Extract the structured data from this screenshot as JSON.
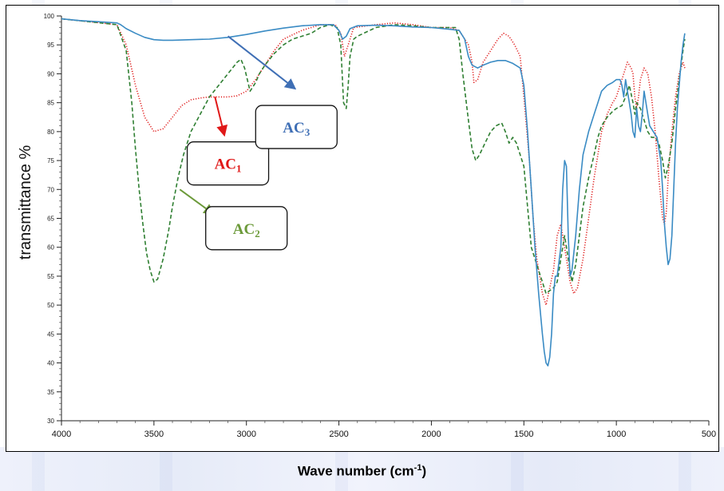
{
  "chart_data": {
    "type": "line",
    "title": "",
    "xlabel": "Wave number (cm",
    "xlabel_sup": "-1",
    "xlabel_close": ")",
    "ylabel": "transmittance %",
    "xlim": [
      4000,
      500
    ],
    "ylim": [
      30,
      100
    ],
    "x_ticks": [
      "4000",
      "3500",
      "3000",
      "2500",
      "2000",
      "1500",
      "1000",
      "500"
    ],
    "y_ticks": [
      "30",
      "35",
      "40",
      "45",
      "50",
      "55",
      "60",
      "65",
      "70",
      "75",
      "80",
      "85",
      "90",
      "95",
      "100"
    ],
    "grid": false,
    "series": [
      {
        "name": "AC1",
        "color": "#e02020",
        "dash": "dotted",
        "points": [
          [
            4000,
            99.5
          ],
          [
            3850,
            99
          ],
          [
            3700,
            98.5
          ],
          [
            3650,
            95
          ],
          [
            3600,
            88
          ],
          [
            3550,
            82.5
          ],
          [
            3500,
            80
          ],
          [
            3450,
            80.5
          ],
          [
            3400,
            82.5
          ],
          [
            3350,
            84.5
          ],
          [
            3300,
            85.5
          ],
          [
            3250,
            85.8
          ],
          [
            3200,
            86
          ],
          [
            3150,
            86
          ],
          [
            3100,
            86
          ],
          [
            3050,
            86.2
          ],
          [
            3000,
            87
          ],
          [
            2950,
            89
          ],
          [
            2900,
            91.5
          ],
          [
            2850,
            94
          ],
          [
            2800,
            96
          ],
          [
            2700,
            97.5
          ],
          [
            2600,
            98.5
          ],
          [
            2520,
            98.5
          ],
          [
            2490,
            97
          ],
          [
            2470,
            93
          ],
          [
            2450,
            95
          ],
          [
            2420,
            98
          ],
          [
            2300,
            98.5
          ],
          [
            2200,
            98.8
          ],
          [
            2100,
            98.5
          ],
          [
            2000,
            98
          ],
          [
            1900,
            98
          ],
          [
            1850,
            97.5
          ],
          [
            1800,
            95
          ],
          [
            1780,
            92
          ],
          [
            1770,
            88.5
          ],
          [
            1750,
            89
          ],
          [
            1720,
            92
          ],
          [
            1700,
            93
          ],
          [
            1680,
            94
          ],
          [
            1640,
            96
          ],
          [
            1610,
            97
          ],
          [
            1580,
            96.5
          ],
          [
            1550,
            95
          ],
          [
            1520,
            93
          ],
          [
            1500,
            86
          ],
          [
            1470,
            75
          ],
          [
            1450,
            65
          ],
          [
            1430,
            58
          ],
          [
            1400,
            52
          ],
          [
            1380,
            50
          ],
          [
            1360,
            53
          ],
          [
            1340,
            56
          ],
          [
            1320,
            62
          ],
          [
            1300,
            64
          ],
          [
            1280,
            60
          ],
          [
            1250,
            54
          ],
          [
            1230,
            52
          ],
          [
            1210,
            53
          ],
          [
            1180,
            58
          ],
          [
            1150,
            65
          ],
          [
            1120,
            72
          ],
          [
            1100,
            76
          ],
          [
            1080,
            80
          ],
          [
            1050,
            83
          ],
          [
            1020,
            85
          ],
          [
            1000,
            86
          ],
          [
            980,
            88
          ],
          [
            960,
            90
          ],
          [
            940,
            92
          ],
          [
            920,
            91
          ],
          [
            910,
            90
          ],
          [
            900,
            86
          ],
          [
            890,
            84
          ],
          [
            880,
            86
          ],
          [
            870,
            89
          ],
          [
            860,
            90
          ],
          [
            850,
            91
          ],
          [
            830,
            90
          ],
          [
            810,
            86
          ],
          [
            790,
            80
          ],
          [
            770,
            72
          ],
          [
            750,
            65
          ],
          [
            740,
            64
          ],
          [
            730,
            66
          ],
          [
            720,
            72
          ],
          [
            700,
            80
          ],
          [
            680,
            86
          ],
          [
            660,
            90
          ],
          [
            640,
            92
          ],
          [
            630,
            91
          ]
        ]
      },
      {
        "name": "AC2",
        "color": "#2f7f32",
        "dash": "dashed",
        "points": [
          [
            4000,
            99.5
          ],
          [
            3850,
            99
          ],
          [
            3700,
            98.5
          ],
          [
            3650,
            94
          ],
          [
            3620,
            85
          ],
          [
            3600,
            77
          ],
          [
            3580,
            70
          ],
          [
            3560,
            64
          ],
          [
            3540,
            59
          ],
          [
            3520,
            56
          ],
          [
            3500,
            54
          ],
          [
            3480,
            54.5
          ],
          [
            3450,
            58
          ],
          [
            3420,
            63
          ],
          [
            3400,
            67
          ],
          [
            3370,
            72
          ],
          [
            3340,
            76
          ],
          [
            3300,
            80
          ],
          [
            3250,
            83
          ],
          [
            3200,
            86
          ],
          [
            3150,
            88
          ],
          [
            3100,
            90
          ],
          [
            3050,
            92
          ],
          [
            3030,
            92.5
          ],
          [
            3010,
            91
          ],
          [
            2980,
            87
          ],
          [
            2950,
            88.5
          ],
          [
            2930,
            90
          ],
          [
            2900,
            91.5
          ],
          [
            2850,
            93.5
          ],
          [
            2800,
            95
          ],
          [
            2750,
            96
          ],
          [
            2700,
            96.5
          ],
          [
            2650,
            97
          ],
          [
            2600,
            98
          ],
          [
            2550,
            98.5
          ],
          [
            2510,
            98
          ],
          [
            2490,
            95
          ],
          [
            2475,
            85
          ],
          [
            2460,
            84
          ],
          [
            2450,
            88
          ],
          [
            2440,
            93
          ],
          [
            2420,
            96
          ],
          [
            2400,
            96.5
          ],
          [
            2300,
            98
          ],
          [
            2200,
            98.5
          ],
          [
            2100,
            98.3
          ],
          [
            2000,
            98
          ],
          [
            1950,
            98
          ],
          [
            1900,
            98
          ],
          [
            1870,
            98
          ],
          [
            1850,
            96
          ],
          [
            1830,
            90
          ],
          [
            1800,
            82
          ],
          [
            1780,
            77
          ],
          [
            1760,
            75
          ],
          [
            1740,
            76
          ],
          [
            1710,
            78
          ],
          [
            1680,
            80
          ],
          [
            1650,
            81
          ],
          [
            1620,
            81.5
          ],
          [
            1600,
            80
          ],
          [
            1580,
            78
          ],
          [
            1560,
            79
          ],
          [
            1540,
            78
          ],
          [
            1500,
            74
          ],
          [
            1480,
            67
          ],
          [
            1460,
            60
          ],
          [
            1440,
            58
          ],
          [
            1420,
            56
          ],
          [
            1400,
            54
          ],
          [
            1380,
            52
          ],
          [
            1360,
            52.5
          ],
          [
            1340,
            53
          ],
          [
            1320,
            54
          ],
          [
            1300,
            58
          ],
          [
            1280,
            62
          ],
          [
            1260,
            58
          ],
          [
            1240,
            54
          ],
          [
            1220,
            57
          ],
          [
            1200,
            62
          ],
          [
            1180,
            67
          ],
          [
            1150,
            72
          ],
          [
            1120,
            76
          ],
          [
            1100,
            79
          ],
          [
            1080,
            81
          ],
          [
            1050,
            82.5
          ],
          [
            1020,
            83.5
          ],
          [
            1000,
            84
          ],
          [
            970,
            84.5
          ],
          [
            950,
            86
          ],
          [
            930,
            88
          ],
          [
            910,
            85
          ],
          [
            900,
            83
          ],
          [
            890,
            85
          ],
          [
            870,
            84
          ],
          [
            850,
            82
          ],
          [
            830,
            80
          ],
          [
            810,
            79
          ],
          [
            790,
            79
          ],
          [
            770,
            78
          ],
          [
            750,
            75
          ],
          [
            735,
            72
          ],
          [
            720,
            74
          ],
          [
            700,
            78
          ],
          [
            680,
            84
          ],
          [
            660,
            89
          ],
          [
            640,
            94
          ],
          [
            630,
            96
          ]
        ]
      },
      {
        "name": "AC3",
        "color": "#3a8bc4",
        "dash": "solid",
        "points": [
          [
            4000,
            99.5
          ],
          [
            3900,
            99.2
          ],
          [
            3800,
            99
          ],
          [
            3700,
            98.8
          ],
          [
            3680,
            98.5
          ],
          [
            3650,
            97.8
          ],
          [
            3600,
            97
          ],
          [
            3550,
            96.3
          ],
          [
            3500,
            95.9
          ],
          [
            3450,
            95.8
          ],
          [
            3400,
            95.8
          ],
          [
            3300,
            95.9
          ],
          [
            3200,
            96
          ],
          [
            3100,
            96.3
          ],
          [
            3000,
            96.8
          ],
          [
            2900,
            97.4
          ],
          [
            2800,
            97.9
          ],
          [
            2700,
            98.3
          ],
          [
            2600,
            98.5
          ],
          [
            2530,
            98.5
          ],
          [
            2500,
            97.5
          ],
          [
            2480,
            96
          ],
          [
            2460,
            96.5
          ],
          [
            2440,
            97.8
          ],
          [
            2400,
            98.3
          ],
          [
            2300,
            98.4
          ],
          [
            2200,
            98.3
          ],
          [
            2100,
            98.1
          ],
          [
            2000,
            98
          ],
          [
            1900,
            97.7
          ],
          [
            1850,
            97.5
          ],
          [
            1820,
            96
          ],
          [
            1800,
            93
          ],
          [
            1780,
            91.5
          ],
          [
            1750,
            91
          ],
          [
            1720,
            91.5
          ],
          [
            1680,
            92
          ],
          [
            1640,
            92.3
          ],
          [
            1600,
            92.3
          ],
          [
            1560,
            91.8
          ],
          [
            1520,
            91
          ],
          [
            1500,
            88
          ],
          [
            1480,
            80
          ],
          [
            1460,
            70
          ],
          [
            1440,
            60
          ],
          [
            1420,
            52
          ],
          [
            1400,
            45
          ],
          [
            1390,
            42
          ],
          [
            1380,
            40
          ],
          [
            1370,
            39.5
          ],
          [
            1360,
            41
          ],
          [
            1350,
            45
          ],
          [
            1340,
            52
          ],
          [
            1330,
            55
          ],
          [
            1320,
            55
          ],
          [
            1300,
            60
          ],
          [
            1290,
            70
          ],
          [
            1280,
            75
          ],
          [
            1270,
            74
          ],
          [
            1260,
            62
          ],
          [
            1250,
            55
          ],
          [
            1240,
            56
          ],
          [
            1220,
            62
          ],
          [
            1200,
            70
          ],
          [
            1180,
            76
          ],
          [
            1150,
            80
          ],
          [
            1120,
            83
          ],
          [
            1100,
            85
          ],
          [
            1080,
            87
          ],
          [
            1050,
            88
          ],
          [
            1020,
            88.5
          ],
          [
            1000,
            89
          ],
          [
            980,
            89
          ],
          [
            970,
            88
          ],
          [
            960,
            86
          ],
          [
            950,
            89
          ],
          [
            940,
            87
          ],
          [
            930,
            85
          ],
          [
            920,
            83
          ],
          [
            910,
            80
          ],
          [
            900,
            79
          ],
          [
            890,
            84
          ],
          [
            880,
            81
          ],
          [
            870,
            80
          ],
          [
            860,
            83
          ],
          [
            850,
            87
          ],
          [
            840,
            85
          ],
          [
            830,
            83
          ],
          [
            820,
            81
          ],
          [
            800,
            80
          ],
          [
            780,
            79
          ],
          [
            760,
            75
          ],
          [
            750,
            70
          ],
          [
            740,
            64
          ],
          [
            730,
            60
          ],
          [
            720,
            57
          ],
          [
            710,
            58
          ],
          [
            700,
            62
          ],
          [
            690,
            70
          ],
          [
            680,
            78
          ],
          [
            670,
            84
          ],
          [
            660,
            88
          ],
          [
            650,
            92
          ],
          [
            640,
            95
          ],
          [
            630,
            97
          ]
        ]
      }
    ],
    "annotations": [
      {
        "main": "AC",
        "sub": "1",
        "color": "#e01818",
        "label_x": 3100,
        "label_y": 74.5,
        "tail": [
          3170,
          86
        ],
        "head": [
          3120,
          79.5
        ]
      },
      {
        "main": "AC",
        "sub": "2",
        "color": "#6c9a3a",
        "label_x": 3000,
        "label_y": 63.3,
        "tail": [
          3360,
          70
        ],
        "head": [
          3180,
          65.8
        ]
      },
      {
        "main": "AC",
        "sub": "3",
        "color": "#3f6fb5",
        "label_x": 2730,
        "label_y": 80.8,
        "tail": [
          3100,
          96.5
        ],
        "head": [
          2740,
          87.5
        ]
      }
    ]
  }
}
